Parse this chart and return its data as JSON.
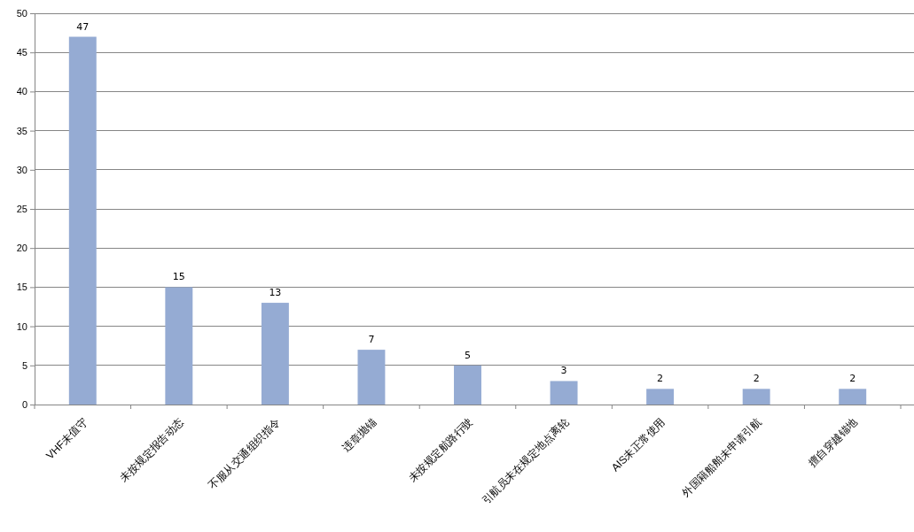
{
  "chart_data": {
    "type": "bar",
    "categories": [
      "VHF未值守",
      "未按规定报告动态",
      "不服从交通组织指令",
      "违章抛锚",
      "未按规定航路行驶",
      "引航员未在规定地点离轮",
      "AIS未正常使用",
      "外国籍船舶未申请引航",
      "擅自穿越锚地"
    ],
    "values": [
      47,
      15,
      13,
      7,
      5,
      3,
      2,
      2,
      2
    ],
    "color": "#95abd3",
    "ylim": [
      0,
      50
    ],
    "yticks": [
      0,
      5,
      10,
      15,
      20,
      25,
      30,
      35,
      40,
      45,
      50
    ],
    "grid": "y",
    "data_labels": true
  }
}
